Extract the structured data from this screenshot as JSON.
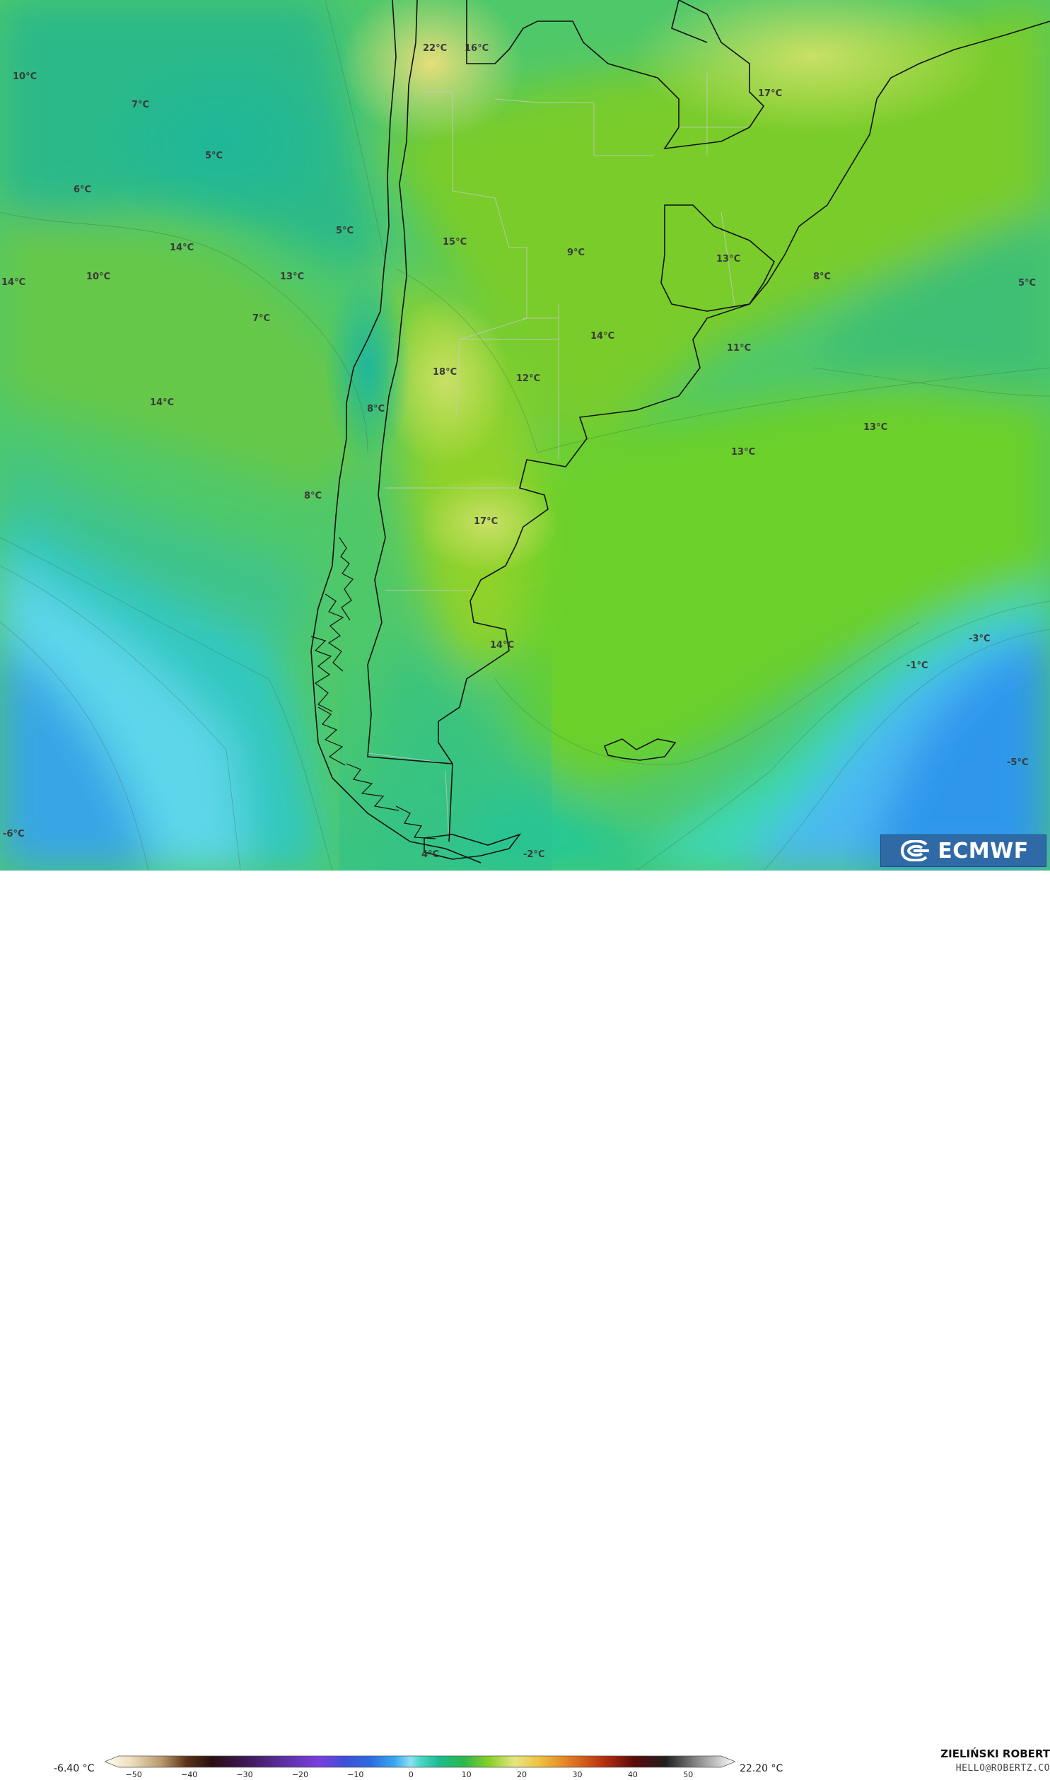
{
  "map": {
    "labels": [
      {
        "text": "22°C"
      },
      {
        "text": "16°C"
      },
      {
        "text": "10°C"
      },
      {
        "text": "7°C"
      },
      {
        "text": "5°C"
      },
      {
        "text": "6°C"
      },
      {
        "text": "17°C"
      },
      {
        "text": "5°C"
      },
      {
        "text": "14°C"
      },
      {
        "text": "15°C"
      },
      {
        "text": "9°C"
      },
      {
        "text": "13°C"
      },
      {
        "text": "14°C"
      },
      {
        "text": "10°C"
      },
      {
        "text": "13°C"
      },
      {
        "text": "8°C"
      },
      {
        "text": "5°C"
      },
      {
        "text": "7°C"
      },
      {
        "text": "14°C"
      },
      {
        "text": "11°C"
      },
      {
        "text": "18°C"
      },
      {
        "text": "12°C"
      },
      {
        "text": "14°C"
      },
      {
        "text": "8°C"
      },
      {
        "text": "13°C"
      },
      {
        "text": "13°C"
      },
      {
        "text": "8°C"
      },
      {
        "text": "17°C"
      },
      {
        "text": "14°C"
      },
      {
        "text": "-3°C"
      },
      {
        "text": "-1°C"
      },
      {
        "text": "-5°C"
      },
      {
        "text": "-6°C"
      },
      {
        "text": "-2°C"
      },
      {
        "text": "4°C"
      }
    ]
  },
  "logo": {
    "text": "ECMWF"
  },
  "colorbar": {
    "min_label": "-6.40 °C",
    "max_label": "22.20 °C",
    "ticks": [
      "−50",
      "−40",
      "−30",
      "−20",
      "−10",
      "0",
      "10",
      "20",
      "30",
      "40",
      "50"
    ],
    "tick_values": [
      -50,
      -40,
      -30,
      -20,
      -10,
      0,
      10,
      20,
      30,
      40,
      50
    ],
    "range": [
      -55,
      58
    ]
  },
  "credits": {
    "author": "ZIELIŃSKI ROBERT",
    "email": "HELLO@ROBERTZ.CO"
  }
}
